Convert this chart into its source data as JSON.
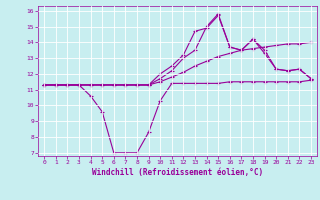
{
  "xlabel": "Windchill (Refroidissement éolien,°C)",
  "bg_color": "#c8eef0",
  "grid_color": "#ffffff",
  "line_color": "#990099",
  "xlim": [
    -0.5,
    23.5
  ],
  "ylim": [
    6.8,
    16.3
  ],
  "xticks": [
    0,
    1,
    2,
    3,
    4,
    5,
    6,
    7,
    8,
    9,
    10,
    11,
    12,
    13,
    14,
    15,
    16,
    17,
    18,
    19,
    20,
    21,
    22,
    23
  ],
  "yticks": [
    7,
    8,
    9,
    10,
    11,
    12,
    13,
    14,
    15,
    16
  ],
  "line1_x": [
    0,
    1,
    2,
    3,
    4,
    5,
    6,
    7,
    8,
    9,
    10,
    11,
    12,
    13,
    14,
    15,
    16,
    17,
    18,
    19,
    20,
    21,
    22,
    23
  ],
  "line1_y": [
    11.3,
    11.3,
    11.3,
    11.3,
    10.6,
    9.6,
    7.0,
    7.0,
    7.0,
    8.3,
    10.3,
    11.4,
    11.4,
    11.4,
    11.4,
    11.4,
    11.5,
    11.5,
    11.5,
    11.5,
    11.5,
    11.5,
    11.5,
    11.6
  ],
  "line2_x": [
    0,
    1,
    2,
    3,
    4,
    5,
    6,
    7,
    8,
    9,
    10,
    11,
    12,
    13,
    14,
    15,
    16,
    17,
    18,
    19,
    20,
    21,
    22,
    23
  ],
  "line2_y": [
    11.3,
    11.3,
    11.3,
    11.3,
    11.3,
    11.3,
    11.3,
    11.3,
    11.3,
    11.3,
    11.5,
    11.8,
    12.1,
    12.5,
    12.8,
    13.1,
    13.3,
    13.5,
    13.6,
    13.7,
    13.8,
    13.9,
    13.9,
    14.0
  ],
  "line3_x": [
    0,
    1,
    2,
    3,
    4,
    5,
    6,
    7,
    8,
    9,
    10,
    11,
    12,
    13,
    14,
    15,
    16,
    17,
    18,
    19,
    20,
    21,
    22,
    23
  ],
  "line3_y": [
    11.3,
    11.3,
    11.3,
    11.3,
    11.3,
    11.3,
    11.3,
    11.3,
    11.3,
    11.3,
    11.7,
    12.2,
    13.0,
    13.5,
    15.0,
    15.8,
    13.7,
    13.5,
    14.2,
    13.5,
    12.3,
    12.2,
    12.3,
    11.7
  ],
  "line4_x": [
    0,
    1,
    2,
    3,
    4,
    5,
    6,
    7,
    8,
    9,
    10,
    11,
    12,
    13,
    14,
    15,
    16,
    17,
    18,
    19,
    20,
    21,
    22,
    23
  ],
  "line4_y": [
    11.3,
    11.3,
    11.3,
    11.3,
    11.3,
    11.3,
    11.3,
    11.3,
    11.3,
    11.3,
    12.0,
    12.5,
    13.2,
    14.7,
    14.9,
    15.7,
    13.7,
    13.5,
    14.2,
    13.3,
    12.3,
    12.2,
    12.3,
    11.7
  ],
  "marker": "+",
  "markersize": 3,
  "linewidth": 0.8,
  "tick_fontsize": 4.5,
  "label_fontsize": 5.5
}
